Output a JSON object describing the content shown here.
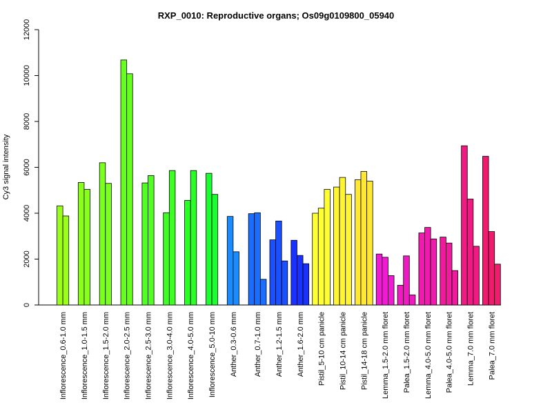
{
  "chart_data": {
    "type": "bar",
    "title": "RXP_0010: Reproductive organs; Os09g0109800_05940",
    "xlabel": "",
    "ylabel": "Cy3 signal intensity",
    "ylim": [
      0,
      12000
    ],
    "yticks": [
      0,
      2000,
      4000,
      6000,
      8000,
      10000,
      12000
    ],
    "grid": false,
    "groups": [
      {
        "label": "Inflorescence_0.6-1.0 mm",
        "color": "#9CFF1A",
        "values": [
          4320,
          3880
        ]
      },
      {
        "label": "Inflorescence_1.0-1.5 mm",
        "color": "#8AFF1C",
        "values": [
          5340,
          5040
        ]
      },
      {
        "label": "Inflorescence_1.5-2.0 mm",
        "color": "#7AFF1E",
        "values": [
          6200,
          5300
        ]
      },
      {
        "label": "Inflorescence_2.0-2.5 mm",
        "color": "#66FF20",
        "values": [
          10680,
          10080
        ]
      },
      {
        "label": "Inflorescence_2.5-3.0 mm",
        "color": "#52FF22",
        "values": [
          5320,
          5640
        ]
      },
      {
        "label": "Inflorescence_3.0-4.0 mm",
        "color": "#3EFF24",
        "values": [
          4020,
          5860
        ]
      },
      {
        "label": "Inflorescence_4.0-5.0 mm",
        "color": "#2AFF26",
        "values": [
          4560,
          5860
        ]
      },
      {
        "label": "Inflorescence_5.0-10 mm",
        "color": "#1AFF30",
        "values": [
          5740,
          4820
        ]
      },
      {
        "label": "Anther_0.3-0.6 mm",
        "color": "#1A8CFF",
        "values": [
          3860,
          2320
        ]
      },
      {
        "label": "Anther_0.7-1.0 mm",
        "color": "#1A6EFF",
        "values": [
          3980,
          4020,
          1120
        ]
      },
      {
        "label": "Anther_1.2-1.5 mm",
        "color": "#1A50FF",
        "values": [
          2840,
          3660,
          1920
        ]
      },
      {
        "label": "Anther_1.6-2.0 mm",
        "color": "#1A32FF",
        "values": [
          2820,
          2160,
          1800
        ]
      },
      {
        "label": "Pistil_5-10 cm panicle",
        "color": "#FFFF33",
        "values": [
          4000,
          4220,
          5040
        ]
      },
      {
        "label": "Pistil_10-14 cm panicle",
        "color": "#FFF533",
        "values": [
          5140,
          5560,
          4820
        ]
      },
      {
        "label": "Pistil_14-18 cm panicle",
        "color": "#FFE833",
        "values": [
          5460,
          5820,
          5400
        ]
      },
      {
        "label": "Lemma_1.5-2.0 mm floret",
        "color": "#F01AD2",
        "values": [
          2220,
          2080,
          1280
        ]
      },
      {
        "label": "Palea_1.5-2.0 mm floret",
        "color": "#F01AC2",
        "values": [
          860,
          2140,
          440
        ]
      },
      {
        "label": "Lemma_4.0-5.0 mm floret",
        "color": "#F01AAF",
        "values": [
          3140,
          3380,
          2880
        ]
      },
      {
        "label": "Palea_4.0-5.0 mm floret",
        "color": "#F01A9C",
        "values": [
          2960,
          2700,
          1500
        ]
      },
      {
        "label": "Lemma_7.0 mm floret",
        "color": "#F01A82",
        "values": [
          6940,
          4620,
          2560
        ]
      },
      {
        "label": "Palea_7.0 mm floret",
        "color": "#F01A6E",
        "values": [
          6480,
          3200,
          1780
        ]
      }
    ]
  }
}
